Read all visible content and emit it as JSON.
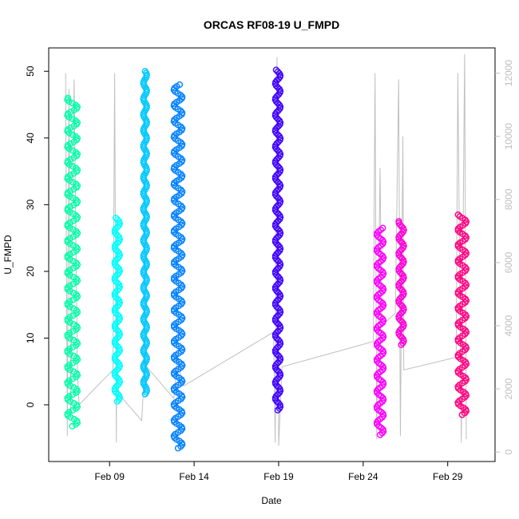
{
  "chart_data": {
    "type": "scatter",
    "title": "ORCAS RF08-19 U_FMPD",
    "xlabel": "Date",
    "ylabel": "U_FMPD",
    "x_ticks": [
      "Feb 09",
      "Feb 14",
      "Feb 19",
      "Feb 24",
      "Feb 29"
    ],
    "x_tick_days": [
      9,
      14,
      19,
      24,
      29
    ],
    "xlim_days": [
      5.4,
      31.8
    ],
    "ylim": [
      -8.5,
      53.5
    ],
    "y_ticks": [
      0,
      10,
      20,
      30,
      40,
      50
    ],
    "y2lim": [
      -300,
      12800
    ],
    "y2_ticks": [
      0,
      2000,
      4000,
      6000,
      8000,
      10000,
      12000
    ],
    "y2_color": "#bfbfbf",
    "grid": false,
    "series": [
      {
        "x_day": 6.5,
        "x_end_day": 7.1,
        "ymin": -3.2,
        "ymax": 46.0,
        "color": "#00ffa8"
      },
      {
        "x_day": 9.3,
        "x_end_day": 9.6,
        "ymin": 0.5,
        "ymax": 28.0,
        "color": "#00ffff"
      },
      {
        "x_day": 11.0,
        "x_end_day": 11.2,
        "ymin": 1.6,
        "ymax": 50.0,
        "color": "#00c8ff"
      },
      {
        "x_day": 12.8,
        "x_end_day": 13.3,
        "ymin": -6.5,
        "ymax": 48.0,
        "color": "#0080ff"
      },
      {
        "x_day": 18.8,
        "x_end_day": 19.1,
        "ymin": -0.8,
        "ymax": 50.2,
        "color": "#4000ff"
      },
      {
        "x_day": 24.8,
        "x_end_day": 25.2,
        "ymin": -4.5,
        "ymax": 26.5,
        "color": "#ff00ff"
      },
      {
        "x_day": 26.1,
        "x_end_day": 26.4,
        "ymin": 9.0,
        "ymax": 27.5,
        "color": "#ff00d8"
      },
      {
        "x_day": 29.6,
        "x_end_day": 30.1,
        "ymin": -1.5,
        "ymax": 28.5,
        "color": "#ff0080"
      }
    ],
    "altitude_trace": {
      "axis": "right",
      "color": "#bfbfbf",
      "path": [
        [
          6.4,
          12000
        ],
        [
          6.5,
          500
        ],
        [
          6.6,
          11500
        ],
        [
          6.7,
          1200
        ],
        [
          6.9,
          11800
        ],
        [
          7.1,
          2500
        ],
        [
          7.2,
          1500
        ],
        [
          9.2,
          2600
        ],
        [
          9.3,
          12000
        ],
        [
          9.4,
          300
        ],
        [
          9.45,
          7000
        ],
        [
          9.5,
          2100
        ],
        [
          9.6,
          1800
        ],
        [
          10.9,
          1000
        ],
        [
          11.1,
          3000
        ],
        [
          11.2,
          2700
        ],
        [
          12.8,
          1700
        ],
        [
          13.0,
          3000
        ],
        [
          13.3,
          2200
        ],
        [
          13.4,
          2100
        ],
        [
          18.7,
          3800
        ],
        [
          18.8,
          300
        ],
        [
          18.9,
          12500
        ],
        [
          19.0,
          200
        ],
        [
          19.2,
          2700
        ],
        [
          24.6,
          3500
        ],
        [
          24.7,
          12000
        ],
        [
          24.8,
          400
        ],
        [
          25.0,
          9000
        ],
        [
          25.1,
          4000
        ],
        [
          25.9,
          4400
        ],
        [
          26.1,
          11800
        ],
        [
          26.2,
          500
        ],
        [
          26.35,
          10000
        ],
        [
          26.4,
          2600
        ],
        [
          29.5,
          3000
        ],
        [
          29.6,
          12000
        ],
        [
          29.8,
          300
        ],
        [
          30.0,
          12600
        ],
        [
          30.1,
          400
        ]
      ]
    }
  }
}
